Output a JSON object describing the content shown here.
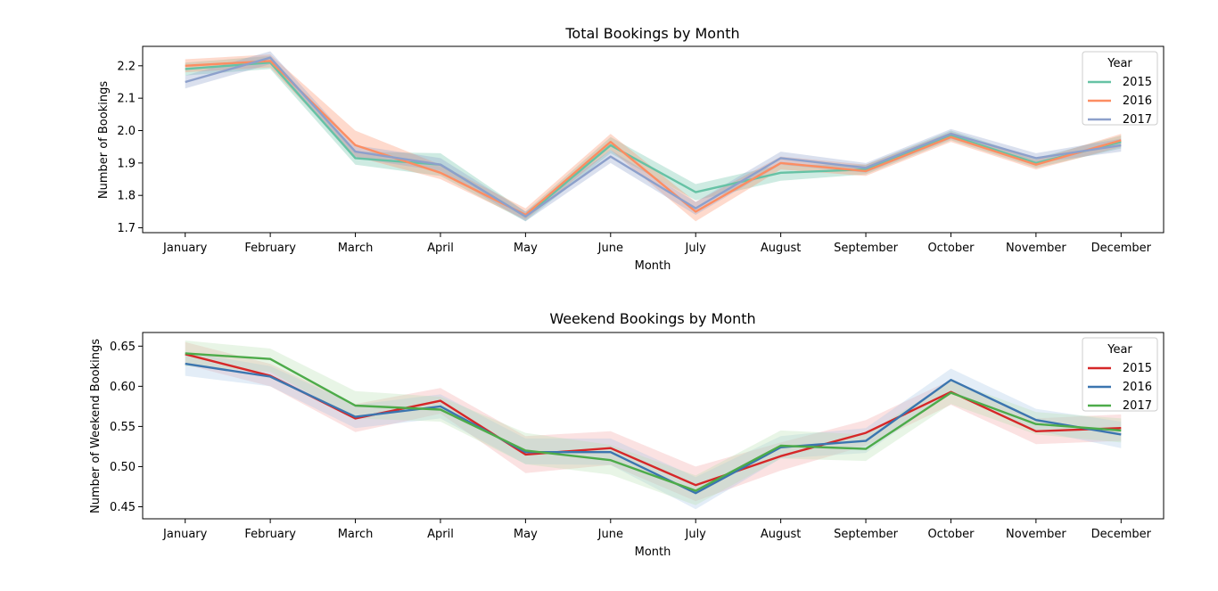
{
  "chart_data": [
    {
      "type": "line",
      "title": "Total Bookings by Month",
      "xlabel": "Month",
      "ylabel": "Number of Bookings",
      "categories": [
        "January",
        "February",
        "March",
        "April",
        "May",
        "June",
        "July",
        "August",
        "September",
        "October",
        "November",
        "December"
      ],
      "ylim": [
        1.685,
        2.26
      ],
      "yticks": [
        1.7,
        1.8,
        1.9,
        2.0,
        2.1,
        2.2
      ],
      "ytick_labels": [
        "1.7",
        "1.8",
        "1.9",
        "2.0",
        "2.1",
        "2.2"
      ],
      "grid": false,
      "legend": {
        "title": "Year",
        "placement": "top-right"
      },
      "series": [
        {
          "name": "2015",
          "color": "#66c2a5",
          "fill": "#66c2a5",
          "values": [
            2.19,
            2.21,
            1.915,
            1.895,
            1.735,
            1.955,
            1.81,
            1.87,
            1.88,
            1.985,
            1.9,
            1.965
          ],
          "ci_low": [
            2.17,
            2.19,
            1.895,
            1.86,
            1.72,
            1.93,
            1.785,
            1.845,
            1.865,
            1.97,
            1.885,
            1.945
          ],
          "ci_high": [
            2.21,
            2.23,
            1.935,
            1.93,
            1.75,
            1.98,
            1.835,
            1.895,
            1.895,
            2.0,
            1.915,
            1.985
          ]
        },
        {
          "name": "2016",
          "color": "#fc8d62",
          "fill": "#fc8d62",
          "values": [
            2.2,
            2.215,
            1.955,
            1.87,
            1.74,
            1.965,
            1.75,
            1.9,
            1.875,
            1.98,
            1.895,
            1.97
          ],
          "ci_low": [
            2.18,
            2.195,
            1.92,
            1.85,
            1.725,
            1.94,
            1.72,
            1.88,
            1.86,
            1.965,
            1.88,
            1.95
          ],
          "ci_high": [
            2.22,
            2.235,
            2.0,
            1.895,
            1.76,
            1.99,
            1.78,
            1.92,
            1.895,
            1.995,
            1.91,
            1.99
          ]
        },
        {
          "name": "2017",
          "color": "#8da0cb",
          "fill": "#8da0cb",
          "values": [
            2.15,
            2.225,
            1.935,
            1.895,
            1.735,
            1.92,
            1.76,
            1.915,
            1.885,
            1.99,
            1.915,
            1.955
          ],
          "ci_low": [
            2.13,
            2.205,
            1.915,
            1.875,
            1.72,
            1.9,
            1.74,
            1.895,
            1.87,
            1.975,
            1.9,
            1.935
          ],
          "ci_high": [
            2.17,
            2.245,
            1.955,
            1.915,
            1.75,
            1.94,
            1.78,
            1.935,
            1.9,
            2.005,
            1.93,
            1.975
          ]
        }
      ]
    },
    {
      "type": "line",
      "title": "Weekend Bookings by Month",
      "xlabel": "Month",
      "ylabel": "Number of Weekend Bookings",
      "categories": [
        "January",
        "February",
        "March",
        "April",
        "May",
        "June",
        "July",
        "August",
        "September",
        "October",
        "November",
        "December"
      ],
      "ylim": [
        0.435,
        0.667
      ],
      "yticks": [
        0.45,
        0.5,
        0.55,
        0.6,
        0.65
      ],
      "ytick_labels": [
        "0.45",
        "0.50",
        "0.55",
        "0.60",
        "0.65"
      ],
      "grid": false,
      "legend": {
        "title": "Year",
        "placement": "top-right"
      },
      "series": [
        {
          "name": "2015",
          "color": "#d62728",
          "fill": "#f4a6a6",
          "values": [
            0.64,
            0.613,
            0.56,
            0.582,
            0.515,
            0.523,
            0.477,
            0.513,
            0.542,
            0.593,
            0.544,
            0.548
          ],
          "ci_low": [
            0.627,
            0.6,
            0.543,
            0.566,
            0.492,
            0.502,
            0.457,
            0.495,
            0.526,
            0.577,
            0.528,
            0.532
          ],
          "ci_high": [
            0.655,
            0.628,
            0.578,
            0.598,
            0.538,
            0.544,
            0.5,
            0.53,
            0.558,
            0.608,
            0.56,
            0.565
          ]
        },
        {
          "name": "2016",
          "color": "#3b75af",
          "fill": "#a9c6e6",
          "values": [
            0.628,
            0.612,
            0.562,
            0.575,
            0.518,
            0.518,
            0.467,
            0.524,
            0.532,
            0.608,
            0.558,
            0.54
          ],
          "ci_low": [
            0.613,
            0.6,
            0.548,
            0.56,
            0.503,
            0.502,
            0.447,
            0.51,
            0.517,
            0.592,
            0.545,
            0.523
          ],
          "ci_high": [
            0.643,
            0.625,
            0.577,
            0.59,
            0.535,
            0.535,
            0.487,
            0.538,
            0.548,
            0.622,
            0.572,
            0.556
          ]
        },
        {
          "name": "2017",
          "color": "#4dab4a",
          "fill": "#b7e0b2",
          "values": [
            0.641,
            0.634,
            0.576,
            0.571,
            0.52,
            0.508,
            0.47,
            0.526,
            0.522,
            0.592,
            0.553,
            0.545
          ],
          "ci_low": [
            0.625,
            0.618,
            0.56,
            0.556,
            0.503,
            0.49,
            0.452,
            0.51,
            0.507,
            0.578,
            0.54,
            0.53
          ],
          "ci_high": [
            0.657,
            0.647,
            0.594,
            0.587,
            0.542,
            0.527,
            0.489,
            0.545,
            0.54,
            0.607,
            0.568,
            0.56
          ]
        }
      ]
    }
  ]
}
